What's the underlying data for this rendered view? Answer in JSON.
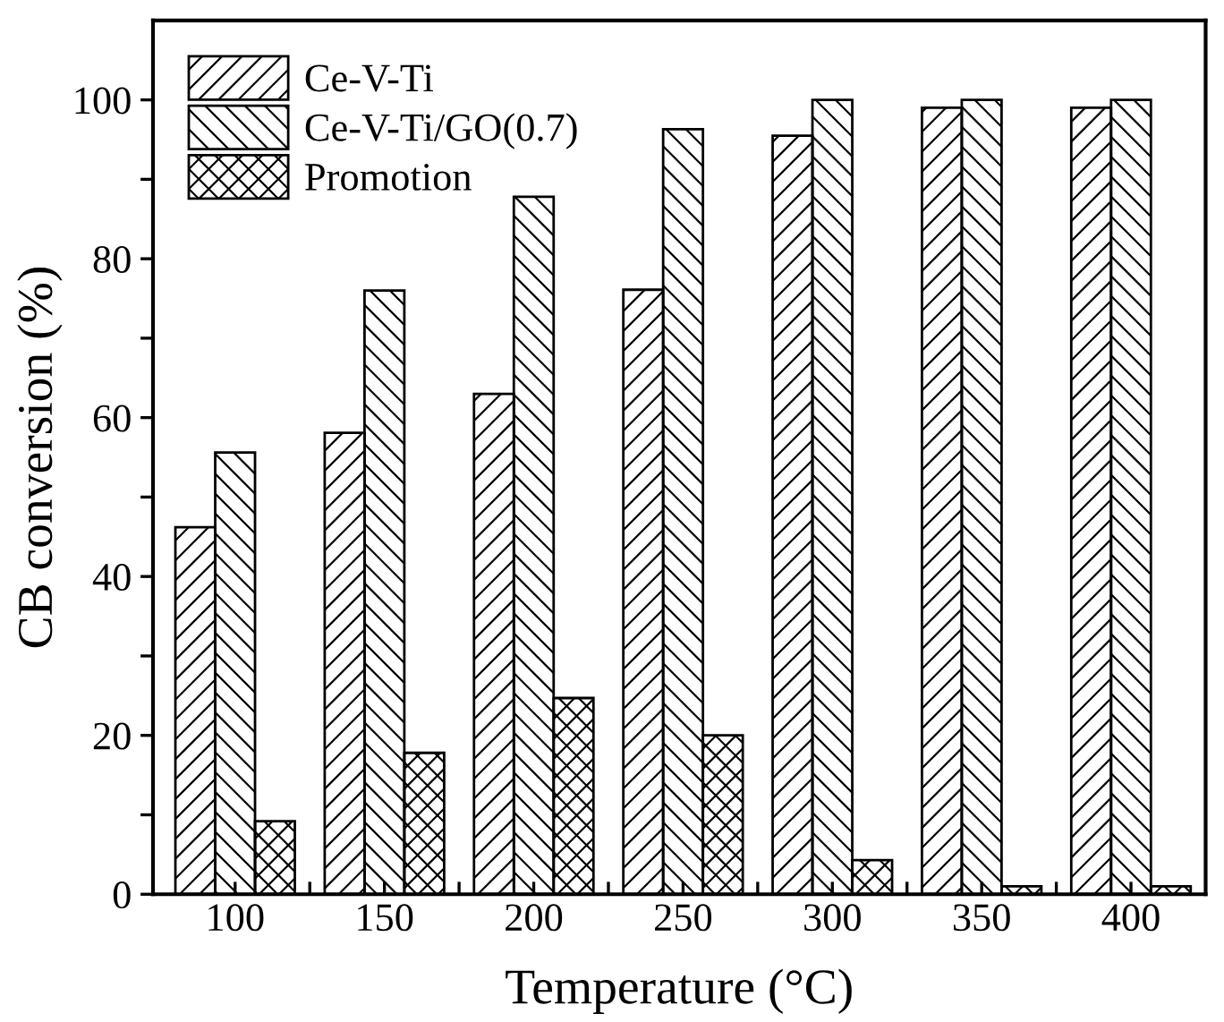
{
  "chart_data": {
    "type": "bar",
    "xlabel": "Temperature (°C)",
    "ylabel": "CB conversion (%)",
    "categories": [
      "100",
      "150",
      "200",
      "250",
      "300",
      "350",
      "400"
    ],
    "series": [
      {
        "name": "Ce-V-Ti",
        "color": "#000000",
        "values": [
          46.2,
          58.1,
          63.0,
          76.1,
          95.5,
          99.0,
          99.0
        ]
      },
      {
        "name": "Ce-V-Ti/GO(0.7)",
        "color": "#000000",
        "values": [
          55.6,
          76.0,
          87.8,
          96.3,
          100,
          100,
          100
        ]
      },
      {
        "name": "Promotion",
        "color": "#000000",
        "values": [
          9.2,
          17.8,
          24.7,
          20.0,
          4.3,
          1.0,
          1.0
        ]
      }
    ],
    "ylim": [
      0,
      110
    ],
    "yticks": [
      0,
      {
        "value": 10,
        "label": null
      },
      20,
      {
        "value": 30,
        "label": null
      },
      40,
      {
        "value": 50,
        "label": null
      },
      60,
      {
        "value": 70,
        "label": null
      },
      80,
      {
        "value": 90,
        "label": null
      },
      100
    ],
    "grid": false,
    "legend": "top left"
  }
}
